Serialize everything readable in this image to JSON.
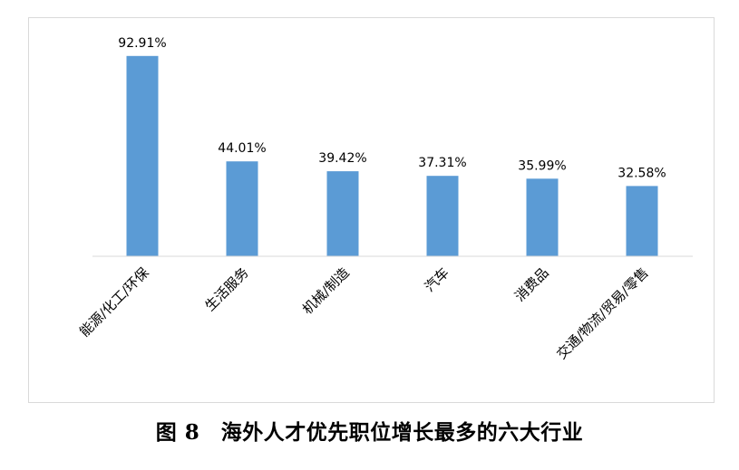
{
  "chart_data": {
    "type": "bar",
    "title": "图 8　海外人才优先职位增长最多的六大行业",
    "categories": [
      "能源/化工/环保",
      "生活服务",
      "机械/制造",
      "汽车",
      "消费品",
      "交通/物流/贸易/零售"
    ],
    "values": [
      92.91,
      44.01,
      39.42,
      37.31,
      35.99,
      32.58
    ],
    "value_labels": [
      "92.91%",
      "44.01%",
      "39.42%",
      "37.31%",
      "35.99%",
      "32.58%"
    ],
    "xlabel": "",
    "ylabel": "",
    "ylim": [
      0,
      100
    ],
    "grid": false,
    "legend": "none",
    "bar_color": "#5b9bd5",
    "axis_color": "#d9d9d9"
  }
}
